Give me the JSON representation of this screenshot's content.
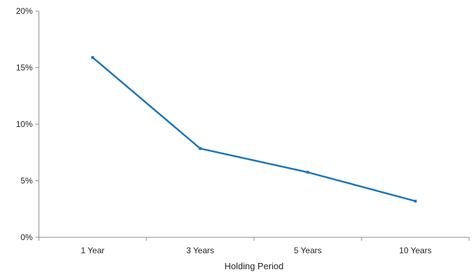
{
  "chart_data": {
    "type": "line",
    "title": "",
    "xlabel": "Holding Period",
    "ylabel": "",
    "categories": [
      "1 Year",
      "3 Years",
      "5 Years",
      "10 Years"
    ],
    "series": [
      {
        "values": [
          15.9,
          7.85,
          5.75,
          3.2
        ],
        "color": "#1b75bb"
      }
    ],
    "ylim": [
      0,
      20
    ],
    "yticks": [
      0,
      5,
      10,
      15,
      20
    ],
    "ytick_labels": [
      "0%",
      "5%",
      "10%",
      "15%",
      "20%"
    ],
    "grid": false,
    "legend": "none"
  }
}
